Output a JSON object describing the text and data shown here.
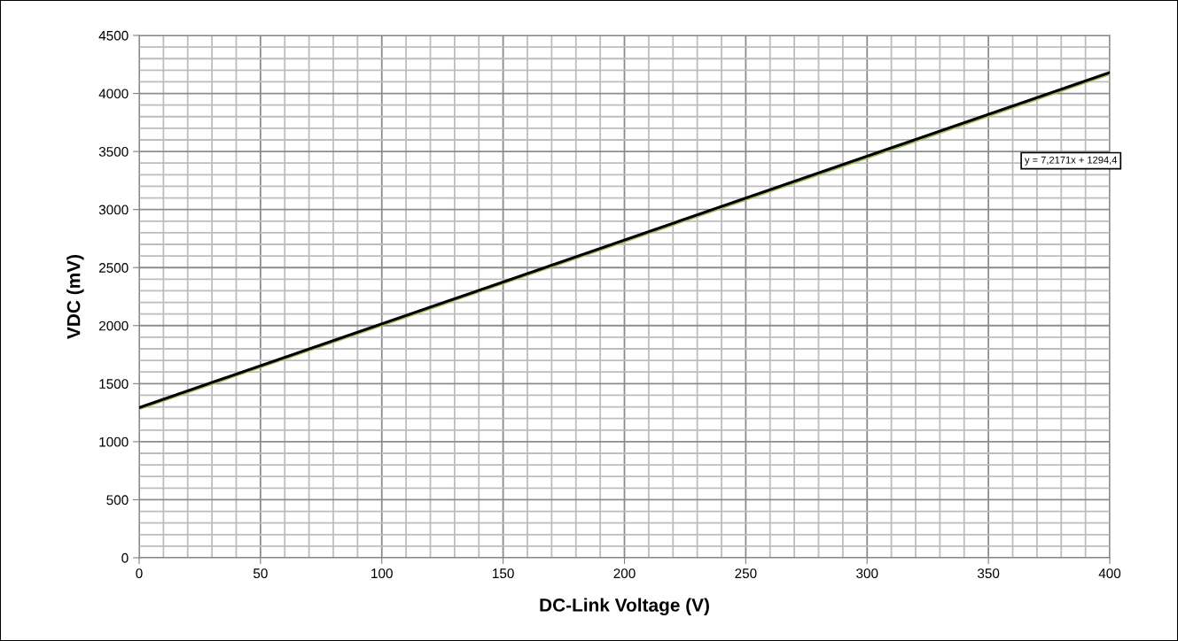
{
  "chart_data": {
    "type": "line",
    "xlabel": "DC-Link Voltage (V)",
    "ylabel": "VDC (mV)",
    "x": [
      0,
      400
    ],
    "series": [
      {
        "color": "#9bbb59",
        "values": [
          1285,
          4170
        ]
      },
      {
        "color": "#000000",
        "values": [
          1294,
          4181
        ]
      }
    ],
    "xlim": [
      0,
      400
    ],
    "xticks": [
      0,
      50,
      100,
      150,
      200,
      250,
      300,
      350,
      400
    ],
    "ylim": [
      0,
      4500
    ],
    "yticks": [
      0,
      500,
      1000,
      1500,
      2000,
      2500,
      3000,
      3500,
      4000,
      4500
    ],
    "grid": true,
    "legend": false,
    "marker": "none",
    "line_style": "solid",
    "annotations": [
      "y = 7,2171x + 1294,4"
    ]
  }
}
